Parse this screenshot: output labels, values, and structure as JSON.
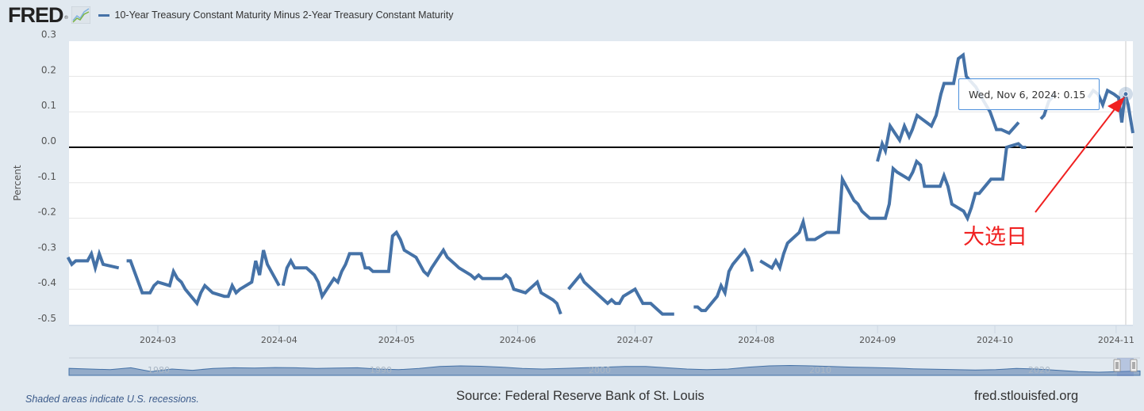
{
  "header": {
    "logo": "FRED",
    "logo_reg": "®",
    "legend_label": "10-Year Treasury Constant Maturity Minus 2-Year Treasury Constant Maturity"
  },
  "colors": {
    "series": "#4572a7",
    "background": "#e1e9f0",
    "annotation": "#f02020",
    "tooltip_border": "#4a8fdc"
  },
  "tooltip": {
    "date": "Wed, Nov 6, 2024:",
    "value": "0.15"
  },
  "annotation": {
    "label": "大选日",
    "target_date": "2024-11-06"
  },
  "footer": {
    "note": "Shaded areas indicate U.S. recessions.",
    "source": "Source: Federal Reserve Bank of St. Louis",
    "url": "fred.stlouisfed.org"
  },
  "navigator": {
    "tick_labels": [
      "1980",
      "1990",
      "2000",
      "2010",
      "2020"
    ]
  },
  "chart_data": {
    "type": "line",
    "title": "10-Year Treasury Constant Maturity Minus 2-Year Treasury Constant Maturity",
    "xlabel": "",
    "ylabel": "Percent",
    "ylim": [
      -0.5,
      0.3
    ],
    "yticks": [
      "0.3",
      "0.2",
      "0.1",
      "0.0",
      "-0.1",
      "-0.2",
      "-0.3",
      "-0.4",
      "-0.5"
    ],
    "xlim": [
      "2024-02-07",
      "2024-11-08"
    ],
    "xticks": [
      {
        "label": "2024-03",
        "date": "2024-03-01"
      },
      {
        "label": "2024-04",
        "date": "2024-04-01"
      },
      {
        "label": "2024-05",
        "date": "2024-05-01"
      },
      {
        "label": "2024-06",
        "date": "2024-06-01"
      },
      {
        "label": "2024-07",
        "date": "2024-07-01"
      },
      {
        "label": "2024-08",
        "date": "2024-08-01"
      },
      {
        "label": "2024-09",
        "date": "2024-09-01"
      },
      {
        "label": "2024-10",
        "date": "2024-10-01"
      },
      {
        "label": "2024-11",
        "date": "2024-11-01"
      }
    ],
    "grid": true,
    "zero_line": true,
    "legend": "top-left",
    "series": [
      {
        "name": "10-Year Treasury Constant Maturity Minus 2-Year Treasury Constant Maturity",
        "segments": [
          [
            [
              "2024-02-07",
              -0.31
            ],
            [
              "2024-02-08",
              -0.33
            ],
            [
              "2024-02-09",
              -0.32
            ],
            [
              "2024-02-12",
              -0.32
            ],
            [
              "2024-02-13",
              -0.3
            ],
            [
              "2024-02-14",
              -0.34
            ],
            [
              "2024-02-15",
              -0.3
            ],
            [
              "2024-02-16",
              -0.33
            ],
            [
              "2024-02-20",
              -0.34
            ]
          ],
          [
            [
              "2024-02-22",
              -0.32
            ],
            [
              "2024-02-23",
              -0.32
            ],
            [
              "2024-02-26",
              -0.41
            ],
            [
              "2024-02-27",
              -0.41
            ],
            [
              "2024-02-28",
              -0.41
            ],
            [
              "2024-02-29",
              -0.39
            ],
            [
              "2024-03-01",
              -0.38
            ],
            [
              "2024-03-04",
              -0.39
            ],
            [
              "2024-03-05",
              -0.35
            ],
            [
              "2024-03-06",
              -0.37
            ],
            [
              "2024-03-07",
              -0.38
            ],
            [
              "2024-03-08",
              -0.4
            ],
            [
              "2024-03-11",
              -0.44
            ],
            [
              "2024-03-12",
              -0.41
            ],
            [
              "2024-03-13",
              -0.39
            ],
            [
              "2024-03-14",
              -0.4
            ],
            [
              "2024-03-15",
              -0.41
            ],
            [
              "2024-03-18",
              -0.42
            ],
            [
              "2024-03-19",
              -0.42
            ],
            [
              "2024-03-20",
              -0.39
            ],
            [
              "2024-03-21",
              -0.41
            ],
            [
              "2024-03-22",
              -0.4
            ],
            [
              "2024-03-25",
              -0.38
            ],
            [
              "2024-03-26",
              -0.32
            ],
            [
              "2024-03-27",
              -0.36
            ],
            [
              "2024-03-28",
              -0.29
            ],
            [
              "2024-03-29",
              -0.33
            ],
            [
              "2024-04-01",
              -0.39
            ]
          ],
          [
            [
              "2024-04-02",
              -0.39
            ],
            [
              "2024-04-03",
              -0.34
            ],
            [
              "2024-04-04",
              -0.32
            ],
            [
              "2024-04-05",
              -0.34
            ],
            [
              "2024-04-08",
              -0.34
            ],
            [
              "2024-04-09",
              -0.35
            ],
            [
              "2024-04-10",
              -0.36
            ],
            [
              "2024-04-11",
              -0.38
            ],
            [
              "2024-04-12",
              -0.42
            ],
            [
              "2024-04-15",
              -0.37
            ],
            [
              "2024-04-16",
              -0.38
            ],
            [
              "2024-04-17",
              -0.35
            ],
            [
              "2024-04-18",
              -0.33
            ],
            [
              "2024-04-19",
              -0.3
            ],
            [
              "2024-04-22",
              -0.3
            ],
            [
              "2024-04-23",
              -0.34
            ],
            [
              "2024-04-24",
              -0.34
            ],
            [
              "2024-04-25",
              -0.35
            ],
            [
              "2024-04-26",
              -0.35
            ],
            [
              "2024-04-29",
              -0.35
            ],
            [
              "2024-04-30",
              -0.25
            ],
            [
              "2024-05-01",
              -0.24
            ],
            [
              "2024-05-02",
              -0.26
            ],
            [
              "2024-05-03",
              -0.29
            ],
            [
              "2024-05-06",
              -0.31
            ],
            [
              "2024-05-07",
              -0.33
            ],
            [
              "2024-05-08",
              -0.35
            ],
            [
              "2024-05-09",
              -0.36
            ],
            [
              "2024-05-10",
              -0.34
            ],
            [
              "2024-05-13",
              -0.29
            ],
            [
              "2024-05-14",
              -0.31
            ],
            [
              "2024-05-15",
              -0.32
            ],
            [
              "2024-05-16",
              -0.33
            ],
            [
              "2024-05-17",
              -0.34
            ],
            [
              "2024-05-20",
              -0.36
            ],
            [
              "2024-05-21",
              -0.37
            ],
            [
              "2024-05-22",
              -0.36
            ],
            [
              "2024-05-23",
              -0.37
            ],
            [
              "2024-05-24",
              -0.37
            ],
            [
              "2024-05-28",
              -0.37
            ],
            [
              "2024-05-29",
              -0.36
            ],
            [
              "2024-05-30",
              -0.37
            ],
            [
              "2024-05-31",
              -0.4
            ],
            [
              "2024-06-03",
              -0.41
            ],
            [
              "2024-06-04",
              -0.4
            ],
            [
              "2024-06-05",
              -0.39
            ],
            [
              "2024-06-06",
              -0.38
            ],
            [
              "2024-06-07",
              -0.41
            ],
            [
              "2024-06-10",
              -0.43
            ],
            [
              "2024-06-11",
              -0.44
            ],
            [
              "2024-06-12",
              -0.47
            ]
          ],
          [
            [
              "2024-06-14",
              -0.4
            ],
            [
              "2024-06-17",
              -0.36
            ],
            [
              "2024-06-18",
              -0.38
            ],
            [
              "2024-06-19",
              -0.39
            ],
            [
              "2024-06-20",
              -0.4
            ],
            [
              "2024-06-21",
              -0.41
            ],
            [
              "2024-06-24",
              -0.44
            ],
            [
              "2024-06-25",
              -0.43
            ],
            [
              "2024-06-26",
              -0.44
            ],
            [
              "2024-06-27",
              -0.44
            ],
            [
              "2024-06-28",
              -0.42
            ],
            [
              "2024-07-01",
              -0.4
            ],
            [
              "2024-07-02",
              -0.42
            ],
            [
              "2024-07-03",
              -0.44
            ],
            [
              "2024-07-05",
              -0.44
            ],
            [
              "2024-07-08",
              -0.47
            ],
            [
              "2024-07-09",
              -0.47
            ],
            [
              "2024-07-10",
              -0.47
            ],
            [
              "2024-07-11",
              -0.47
            ]
          ],
          [
            [
              "2024-07-16",
              -0.45
            ],
            [
              "2024-07-17",
              -0.45
            ],
            [
              "2024-07-18",
              -0.46
            ],
            [
              "2024-07-19",
              -0.46
            ],
            [
              "2024-07-22",
              -0.42
            ],
            [
              "2024-07-23",
              -0.39
            ],
            [
              "2024-07-24",
              -0.41
            ],
            [
              "2024-07-25",
              -0.35
            ],
            [
              "2024-07-26",
              -0.33
            ],
            [
              "2024-07-29",
              -0.29
            ],
            [
              "2024-07-30",
              -0.31
            ],
            [
              "2024-07-31",
              -0.35
            ]
          ],
          [
            [
              "2024-08-02",
              -0.32
            ],
            [
              "2024-08-05",
              -0.34
            ],
            [
              "2024-08-06",
              -0.32
            ],
            [
              "2024-08-07",
              -0.34
            ],
            [
              "2024-08-08",
              -0.3
            ],
            [
              "2024-08-09",
              -0.27
            ],
            [
              "2024-08-12",
              -0.24
            ],
            [
              "2024-08-13",
              -0.21
            ],
            [
              "2024-08-14",
              -0.26
            ],
            [
              "2024-08-15",
              -0.26
            ],
            [
              "2024-08-16",
              -0.26
            ],
            [
              "2024-08-19",
              -0.24
            ],
            [
              "2024-08-20",
              -0.24
            ],
            [
              "2024-08-21",
              -0.24
            ],
            [
              "2024-08-22",
              -0.24
            ],
            [
              "2024-08-23",
              -0.09
            ],
            [
              "2024-08-26",
              -0.15
            ],
            [
              "2024-08-27",
              -0.16
            ],
            [
              "2024-08-28",
              -0.18
            ],
            [
              "2024-08-29",
              -0.19
            ],
            [
              "2024-08-30",
              -0.2
            ],
            [
              "2024-09-03",
              -0.2
            ],
            [
              "2024-09-04",
              -0.16
            ],
            [
              "2024-09-05",
              -0.06
            ],
            [
              "2024-09-06",
              -0.07
            ],
            [
              "2024-09-09",
              -0.09
            ],
            [
              "2024-09-10",
              -0.07
            ],
            [
              "2024-09-11",
              -0.04
            ],
            [
              "2024-09-12",
              -0.05
            ],
            [
              "2024-09-13",
              -0.11
            ],
            [
              "2024-09-16",
              -0.11
            ],
            [
              "2024-09-17",
              -0.11
            ],
            [
              "2024-09-18",
              -0.08
            ],
            [
              "2024-09-19",
              -0.11
            ],
            [
              "2024-09-20",
              -0.16
            ],
            [
              "2024-09-23",
              -0.18
            ],
            [
              "2024-09-24",
              -0.2
            ],
            [
              "2024-09-25",
              -0.17
            ],
            [
              "2024-09-26",
              -0.13
            ],
            [
              "2024-09-27",
              -0.13
            ],
            [
              "2024-09-30",
              -0.09
            ],
            [
              "2024-10-01",
              -0.09
            ],
            [
              "2024-10-02",
              -0.09
            ],
            [
              "2024-10-03",
              -0.09
            ],
            [
              "2024-10-04",
              0.0
            ],
            [
              "2024-10-07",
              0.01
            ],
            [
              "2024-10-08",
              0.0
            ],
            [
              "2024-10-09",
              0.0
            ]
          ]
        ]
      }
    ]
  }
}
